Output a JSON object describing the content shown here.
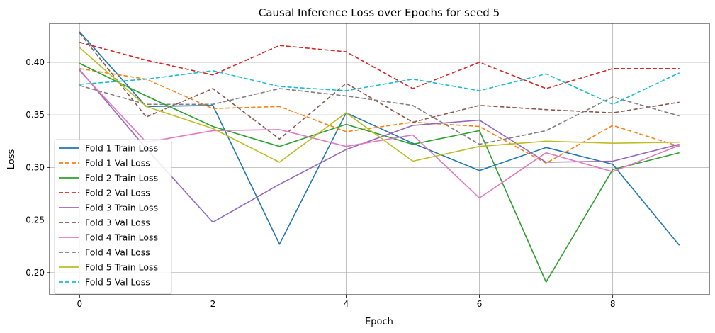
{
  "chart_data": {
    "type": "line",
    "title": "Causal Inference Loss over Epochs for seed 5",
    "xlabel": "Epoch",
    "ylabel": "Loss",
    "xlim": [
      -0.45,
      9.45
    ],
    "ylim": [
      0.179,
      0.437
    ],
    "xticks": [
      0,
      2,
      4,
      6,
      8
    ],
    "yticks": [
      0.2,
      0.25,
      0.3,
      0.35,
      0.4
    ],
    "ytick_labels": [
      "0.20",
      "0.25",
      "0.30",
      "0.35",
      "0.40"
    ],
    "grid": true,
    "legend_position": "lower-left",
    "x": [
      0,
      1,
      2,
      3,
      4,
      5,
      6,
      7,
      8,
      9
    ],
    "series": [
      {
        "name": "Fold 1 Train Loss",
        "color": "#1f77b4",
        "dash": "solid",
        "values": [
          0.429,
          0.358,
          0.359,
          0.227,
          0.352,
          0.323,
          0.297,
          0.319,
          0.303,
          0.226
        ]
      },
      {
        "name": "Fold 1 Val Loss",
        "color": "#ff7f0e",
        "dash": "dashed",
        "values": [
          0.394,
          0.384,
          0.356,
          0.358,
          0.334,
          0.343,
          0.339,
          0.304,
          0.34,
          0.32
        ]
      },
      {
        "name": "Fold 2 Train Loss",
        "color": "#2ca02c",
        "dash": "solid",
        "values": [
          0.399,
          0.368,
          0.339,
          0.32,
          0.341,
          0.322,
          0.335,
          0.191,
          0.298,
          0.314
        ]
      },
      {
        "name": "Fold 2 Val Loss",
        "color": "#d62728",
        "dash": "dashed",
        "values": [
          0.419,
          0.402,
          0.388,
          0.416,
          0.41,
          0.375,
          0.4,
          0.375,
          0.394,
          0.394
        ]
      },
      {
        "name": "Fold 3 Train Loss",
        "color": "#9467bd",
        "dash": "solid",
        "values": [
          0.393,
          0.318,
          0.248,
          0.284,
          0.317,
          0.34,
          0.345,
          0.305,
          0.306,
          0.322
        ]
      },
      {
        "name": "Fold 3 Val Loss",
        "color": "#8c564b",
        "dash": "dashed",
        "values": [
          0.428,
          0.348,
          0.375,
          0.327,
          0.38,
          0.343,
          0.359,
          0.355,
          0.352,
          0.362
        ]
      },
      {
        "name": "Fold 4 Train Loss",
        "color": "#e377c2",
        "dash": "solid",
        "values": [
          0.392,
          0.324,
          0.335,
          0.336,
          0.32,
          0.331,
          0.271,
          0.314,
          0.296,
          0.321
        ]
      },
      {
        "name": "Fold 4 Val Loss",
        "color": "#7f7f7f",
        "dash": "dashed",
        "values": [
          0.378,
          0.36,
          0.36,
          0.375,
          0.368,
          0.359,
          0.322,
          0.335,
          0.367,
          0.349
        ]
      },
      {
        "name": "Fold 5 Train Loss",
        "color": "#bcbd22",
        "dash": "solid",
        "values": [
          0.414,
          0.358,
          0.337,
          0.305,
          0.352,
          0.306,
          0.32,
          0.325,
          0.323,
          0.324
        ]
      },
      {
        "name": "Fold 5 Val Loss",
        "color": "#17becf",
        "dash": "dashed",
        "values": [
          0.379,
          0.384,
          0.392,
          0.377,
          0.373,
          0.384,
          0.373,
          0.389,
          0.36,
          0.39
        ]
      }
    ]
  }
}
